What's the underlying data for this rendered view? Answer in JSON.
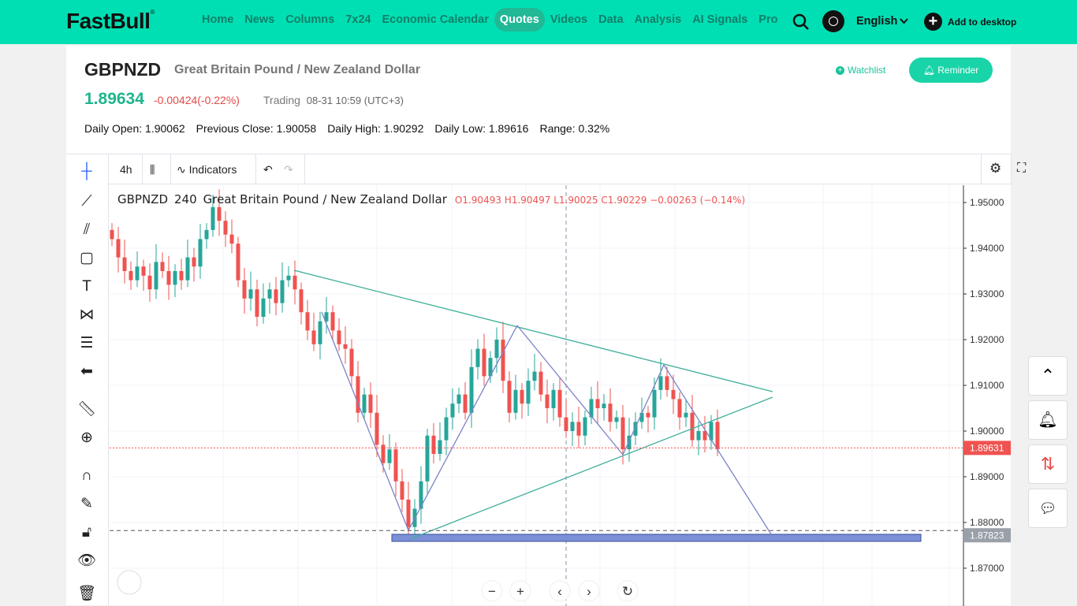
{
  "nav": {
    "logo": "FastBull",
    "items": [
      "Home",
      "News",
      "Columns",
      "7x24",
      "Economic Calendar",
      "Quotes",
      "Videos",
      "Data",
      "Analysis",
      "AI Signals",
      "Pro"
    ],
    "active": "Quotes",
    "language": "English",
    "add_to_desktop": "Add to desktop"
  },
  "quote": {
    "symbol": "GBPNZD",
    "name": "Great Britain Pound / New Zealand Dollar",
    "price": "1.89634",
    "change": "-0.00424(-0.22%)",
    "trading_label": "Trading",
    "trading_time": "08-31 10:59 (UTC+3)",
    "watchlist": "Watchlist",
    "reminder": "Reminder",
    "stats": [
      "Daily Open: 1.90062",
      "Previous Close: 1.90058",
      "Daily High: 1.90292",
      "Daily Low: 1.89616",
      "Range: 0.32%"
    ]
  },
  "toolbar": {
    "interval": "4h",
    "indicators": "Indicators"
  },
  "legend": {
    "symbol": "GBPNZD",
    "interval": "240",
    "name": "Great Britain Pound / New Zealand Dollar",
    "ohlc": "O1.90493  H1.90497  L1.90025  C1.90229  −0.00263 (−0.14%)"
  },
  "colors": {
    "brand": "#00dfb3",
    "up": "#26a69a",
    "down": "#ef5350"
  },
  "chart_data": {
    "type": "candlestick",
    "ylim": [
      1.865,
      1.955
    ],
    "yticks": [
      "1.95000",
      "1.94000",
      "1.93000",
      "1.92000",
      "1.91000",
      "1.90000",
      "1.89000",
      "1.88000",
      "1.87000"
    ],
    "current_price": "1.89631",
    "crosshair_price": "1.87823",
    "closes": [
      1.942,
      1.938,
      1.935,
      1.933,
      1.936,
      1.934,
      1.931,
      1.937,
      1.935,
      1.932,
      1.935,
      1.933,
      1.938,
      1.936,
      1.942,
      1.944,
      1.949,
      1.946,
      1.943,
      1.941,
      1.933,
      1.929,
      1.931,
      1.925,
      1.929,
      1.931,
      1.928,
      1.933,
      1.934,
      1.931,
      1.926,
      1.922,
      1.919,
      1.924,
      1.926,
      1.922,
      1.919,
      1.918,
      1.912,
      1.904,
      1.908,
      1.904,
      1.897,
      1.893,
      1.896,
      1.889,
      1.885,
      1.879,
      1.883,
      1.889,
      1.899,
      1.895,
      1.898,
      1.903,
      1.906,
      1.908,
      1.904,
      1.914,
      1.918,
      1.912,
      1.916,
      1.92,
      1.911,
      1.904,
      1.909,
      1.906,
      1.911,
      1.913,
      1.908,
      1.905,
      1.909,
      1.903,
      1.9,
      1.902,
      1.899,
      1.903,
      1.907,
      1.905,
      1.906,
      1.902,
      1.903,
      1.896,
      1.899,
      1.902,
      1.904,
      1.903,
      1.909,
      1.912,
      1.909,
      1.907,
      1.903,
      1.904,
      1.898,
      1.9,
      1.898,
      1.902,
      1.896
    ]
  }
}
